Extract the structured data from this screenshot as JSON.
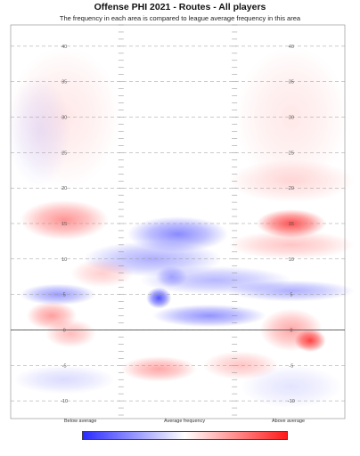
{
  "title": "Offense PHI 2021 - Routes - All players",
  "subtitle": "The frequency in each area is compared to league average frequency in this area",
  "colors": {
    "below": "#2b2bff",
    "neutral": "#ffffff",
    "above": "#ff1a1a",
    "grid": "#9a9a9a",
    "los": "#555555"
  },
  "chart_data": {
    "type": "heatmap",
    "title": "Offense PHI 2021 - Routes - All players",
    "subtitle": "The frequency in each area is compared to league average frequency in this area",
    "y_ticks": [
      40,
      35,
      30,
      25,
      20,
      15,
      10,
      5,
      0,
      -5,
      -10
    ],
    "ylim": [
      -12.5,
      43
    ],
    "xlim": [
      -26.5,
      26.5
    ],
    "line_of_scrimmage": 0,
    "legend": {
      "low": "Below average",
      "mid": "Average frequency",
      "high": "Above average"
    },
    "blobs": [
      {
        "x": -18,
        "y": 15.5,
        "w": 7,
        "h": 2.8,
        "v": 0.55
      },
      {
        "x": -18,
        "y": 30,
        "w": 9,
        "h": 10,
        "v": 0.12
      },
      {
        "x": 18,
        "y": 15,
        "w": 5.5,
        "h": 2,
        "v": 0.9
      },
      {
        "x": 18,
        "y": 30,
        "w": 9,
        "h": 10,
        "v": 0.12
      },
      {
        "x": 18,
        "y": 21,
        "w": 10,
        "h": 3,
        "v": 0.2
      },
      {
        "x": 18,
        "y": 12,
        "w": 10,
        "h": 2,
        "v": 0.3
      },
      {
        "x": 0,
        "y": 13.5,
        "w": 8,
        "h": 2.5,
        "v": -0.65
      },
      {
        "x": -4,
        "y": 10,
        "w": 11,
        "h": 2.5,
        "v": -0.45
      },
      {
        "x": 6,
        "y": 7,
        "w": 12,
        "h": 2,
        "v": -0.4
      },
      {
        "x": -19,
        "y": 5,
        "w": 6,
        "h": 1.5,
        "v": -0.55
      },
      {
        "x": -3,
        "y": 4.5,
        "w": 2,
        "h": 1.5,
        "v": -0.95
      },
      {
        "x": -1,
        "y": 7.5,
        "w": 2.5,
        "h": 1.5,
        "v": -0.4
      },
      {
        "x": 5,
        "y": 2,
        "w": 9,
        "h": 1.6,
        "v": -0.6
      },
      {
        "x": 18,
        "y": 5.5,
        "w": 10,
        "h": 1.5,
        "v": -0.45
      },
      {
        "x": -20,
        "y": 2,
        "w": 4,
        "h": 2,
        "v": 0.5
      },
      {
        "x": -17,
        "y": -0.5,
        "w": 4,
        "h": 2,
        "v": 0.35
      },
      {
        "x": 21,
        "y": -1.5,
        "w": 2.5,
        "h": 1.6,
        "v": 0.95
      },
      {
        "x": 18,
        "y": 0,
        "w": 5,
        "h": 3,
        "v": 0.45
      },
      {
        "x": -3,
        "y": -5.5,
        "w": 6,
        "h": 1.8,
        "v": 0.45
      },
      {
        "x": 10,
        "y": -5,
        "w": 6,
        "h": 2,
        "v": 0.3
      },
      {
        "x": -18,
        "y": -7,
        "w": 8,
        "h": 2,
        "v": -0.2
      },
      {
        "x": 18,
        "y": -8,
        "w": 8,
        "h": 3,
        "v": -0.15
      },
      {
        "x": -22,
        "y": 28,
        "w": 5,
        "h": 8,
        "v": -0.12
      },
      {
        "x": -12,
        "y": 8,
        "w": 5,
        "h": 2,
        "v": 0.25
      }
    ]
  }
}
